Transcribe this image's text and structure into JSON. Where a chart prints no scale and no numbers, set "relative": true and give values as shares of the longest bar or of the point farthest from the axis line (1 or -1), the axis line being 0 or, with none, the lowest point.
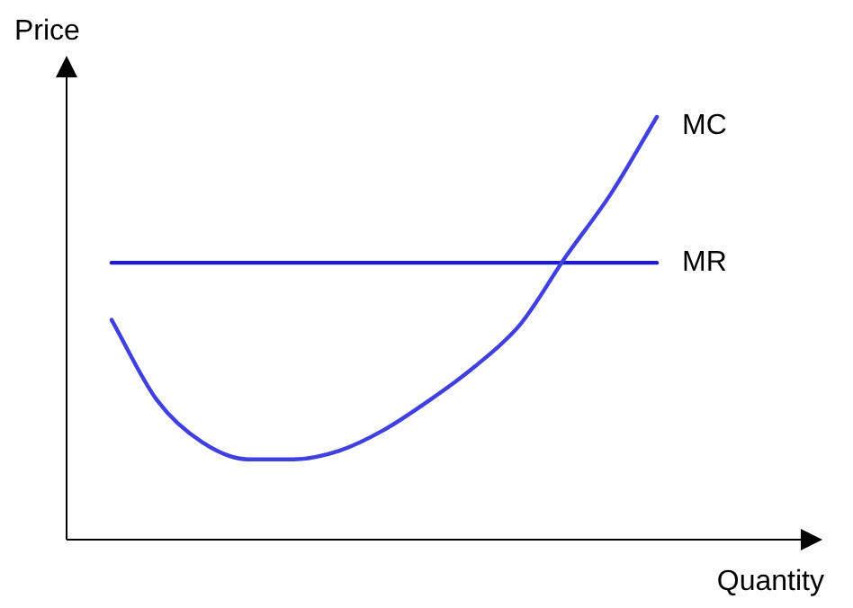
{
  "chart_data": {
    "type": "line",
    "relative": true,
    "xlabel": "Quantity",
    "ylabel": "Price",
    "legend": false,
    "marker": "none",
    "line_style": "solid",
    "categories": [
      null,
      null,
      null,
      null,
      null,
      null,
      null,
      null,
      null,
      null,
      null,
      null,
      null
    ],
    "series": [
      {
        "name": "MC",
        "color": "#4040e0",
        "values": [
          0.52,
          0.33,
          0.23,
          0.19,
          0.19,
          0.21,
          0.26,
          0.33,
          0.41,
          0.51,
          0.67,
          0.82,
          1.0
        ]
      },
      {
        "name": "MR",
        "color": "#1c1cc8",
        "values": [
          0.655,
          0.655,
          0.655,
          0.655,
          0.655,
          0.655,
          0.655,
          0.655,
          0.655,
          0.655,
          0.655,
          0.655,
          0.655
        ]
      }
    ]
  }
}
